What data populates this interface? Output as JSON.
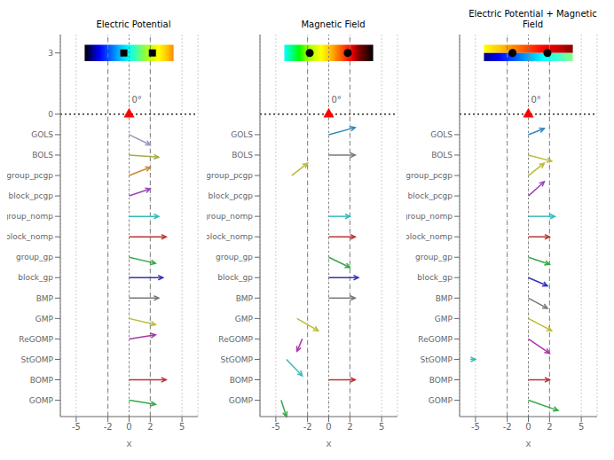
{
  "chart_data": [
    {
      "type": "arrow",
      "title": "Electric Potential",
      "xlabel": "x",
      "xlim": [
        -6.5,
        6.5
      ],
      "xticks": [
        -5,
        -2,
        0,
        2,
        5
      ],
      "ylim": [
        -14.8,
        3.9
      ],
      "yticks": [
        3,
        0,
        {
          "value": -1,
          "label": "GOLS"
        },
        {
          "value": -2,
          "label": "BOLS"
        },
        {
          "value": -3,
          "label": "group_pcgp"
        },
        {
          "value": -4,
          "label": "block_pcgp"
        },
        {
          "value": -5,
          "label": "group_nomp"
        },
        {
          "value": -6,
          "label": "block_nomp"
        },
        {
          "value": -7,
          "label": "group_gp"
        },
        {
          "value": -8,
          "label": "block_gp"
        },
        {
          "value": -9,
          "label": "BMP"
        },
        {
          "value": -10,
          "label": "GMP"
        },
        {
          "value": -11,
          "label": "ReGOMP"
        },
        {
          "value": -12,
          "label": "StGOMP"
        },
        {
          "value": -13,
          "label": "BOMP"
        },
        {
          "value": -14,
          "label": "GOMP"
        }
      ],
      "grid": "x",
      "arrows": [
        {
          "x": 0.0,
          "y": -1,
          "dx": 2.0,
          "dy": -0.5,
          "color": "#9999bb"
        },
        {
          "x": 0.0,
          "y": -2,
          "dx": 2.8,
          "dy": -0.1,
          "color": "#aaaa44"
        },
        {
          "x": 0.0,
          "y": -3,
          "dx": 2.0,
          "dy": 0.4,
          "color": "#cc8833"
        },
        {
          "x": 0.0,
          "y": -4,
          "dx": 2.0,
          "dy": 0.35,
          "color": "#9944bb"
        },
        {
          "x": 0.0,
          "y": -5,
          "dx": 2.8,
          "dy": 0.0,
          "color": "#33bbbb"
        },
        {
          "x": 0.0,
          "y": -6,
          "dx": 3.5,
          "dy": 0.0,
          "color": "#bb3333"
        },
        {
          "x": 0.0,
          "y": -7,
          "dx": 2.5,
          "dy": -0.3,
          "color": "#33aa44"
        },
        {
          "x": 0.0,
          "y": -8,
          "dx": 3.2,
          "dy": 0.0,
          "color": "#3333bb"
        },
        {
          "x": 0.0,
          "y": -9,
          "dx": 2.8,
          "dy": 0.0,
          "color": "#777777"
        },
        {
          "x": 0.0,
          "y": -10,
          "dx": 2.5,
          "dy": -0.3,
          "color": "#bbbb33"
        },
        {
          "x": 0.0,
          "y": -11,
          "dx": 2.5,
          "dy": 0.2,
          "color": "#aa33aa"
        },
        {
          "x": 0.0,
          "y": -12,
          "dx": 0.0,
          "dy": 0.0,
          "color": "#777777"
        },
        {
          "x": 0.0,
          "y": -13,
          "dx": 3.5,
          "dy": 0.0,
          "color": "#bb3333"
        },
        {
          "x": 0.0,
          "y": -14,
          "dx": 2.5,
          "dy": -0.2,
          "color": "#33aa44"
        }
      ],
      "colorbar": {
        "colors": [
          "#000000",
          "#000088",
          "#0000ff",
          "#0044ff",
          "#0088ff",
          "#00ccff",
          "#00ffee",
          "#44ffaa",
          "#88ff44",
          "#ccff00",
          "#ffff00",
          "#ffcc00",
          "#ff8800"
        ]
      },
      "colorbar_x": [
        -4.2,
        4.2
      ],
      "colorbar_y": [
        2.6,
        3.4
      ],
      "points": [
        {
          "x": -0.5,
          "y": 3.0,
          "marker": "square",
          "color": "#000000"
        },
        {
          "x": 2.2,
          "y": 3.0,
          "marker": "square",
          "color": "#000000"
        },
        {
          "x": 0.0,
          "y": 0.0,
          "marker": "triangle",
          "color": "#ff0000"
        }
      ],
      "annotations": [
        {
          "text": "0°",
          "x": 0.25,
          "y": 0.55
        }
      ],
      "vlines": [
        {
          "x": 0,
          "line_style": "dotted",
          "color": "#808080"
        },
        {
          "x": -2.0,
          "line_style": "dashed",
          "color": "#808080"
        },
        {
          "x": 2.0,
          "line_style": "dashed",
          "color": "#808080"
        }
      ],
      "hlines": [
        {
          "y": 0,
          "line_style": "dotted",
          "color": "#000000"
        }
      ]
    },
    {
      "type": "arrow",
      "title": "Magnetic Field",
      "xlabel": "x",
      "xlim": [
        -6.5,
        6.5
      ],
      "xticks": [
        -5,
        -2,
        0,
        2,
        5
      ],
      "ylim": [
        -14.8,
        3.9
      ],
      "yticks": [
        {
          "value": -1,
          "label": "GOLS"
        },
        {
          "value": -2,
          "label": "BOLS"
        },
        {
          "value": -3,
          "label": "group_pcgp"
        },
        {
          "value": -4,
          "label": "block_pcgp"
        },
        {
          "value": -5,
          "label": "group_nomp"
        },
        {
          "value": -6,
          "label": "block_nomp"
        },
        {
          "value": -7,
          "label": "group_gp"
        },
        {
          "value": -8,
          "label": "block_gp"
        },
        {
          "value": -9,
          "label": "BMP"
        },
        {
          "value": -10,
          "label": "GMP"
        },
        {
          "value": -11,
          "label": "ReGOMP"
        },
        {
          "value": -12,
          "label": "StGOMP"
        },
        {
          "value": -13,
          "label": "BOMP"
        },
        {
          "value": -14,
          "label": "GOMP"
        }
      ],
      "grid": "x",
      "arrows": [
        {
          "x": 0.0,
          "y": -1,
          "dx": 2.5,
          "dy": 0.35,
          "color": "#3388bb"
        },
        {
          "x": 0.0,
          "y": -2,
          "dx": 2.5,
          "dy": 0.0,
          "color": "#777777"
        },
        {
          "x": -3.5,
          "y": -3,
          "dx": 1.5,
          "dy": 0.6,
          "color": "#bbbb33"
        },
        {
          "x": 0.0,
          "y": -4,
          "dx": 0.0,
          "dy": 0.0,
          "color": "#9944bb"
        },
        {
          "x": 0.0,
          "y": -5,
          "dx": 2.0,
          "dy": 0.0,
          "color": "#33bbbb"
        },
        {
          "x": 0.0,
          "y": -6,
          "dx": 2.5,
          "dy": 0.0,
          "color": "#bb3333"
        },
        {
          "x": 0.0,
          "y": -7,
          "dx": 2.0,
          "dy": -0.5,
          "color": "#33aa44"
        },
        {
          "x": 0.0,
          "y": -8,
          "dx": 2.8,
          "dy": 0.0,
          "color": "#3333bb"
        },
        {
          "x": 0.0,
          "y": -9,
          "dx": 2.5,
          "dy": 0.0,
          "color": "#777777"
        },
        {
          "x": -3.0,
          "y": -10,
          "dx": 2.0,
          "dy": -0.6,
          "color": "#bbbb33"
        },
        {
          "x": -2.5,
          "y": -11,
          "dx": -0.5,
          "dy": -0.6,
          "color": "#aa33aa"
        },
        {
          "x": -4.0,
          "y": -12,
          "dx": 1.5,
          "dy": -0.8,
          "color": "#33bbbb"
        },
        {
          "x": 0.0,
          "y": -13,
          "dx": 2.5,
          "dy": 0.0,
          "color": "#bb3333"
        },
        {
          "x": -4.5,
          "y": -14,
          "dx": 0.5,
          "dy": -0.8,
          "color": "#33aa44"
        }
      ],
      "colorbar": {
        "colors": [
          "#00ffff",
          "#00ff88",
          "#00ff00",
          "#88ff00",
          "#ccff00",
          "#ffff00",
          "#ffcc00",
          "#ff8800",
          "#ff4400",
          "#ff0000",
          "#880000",
          "#440000",
          "#000000"
        ]
      },
      "colorbar_x": [
        -4.2,
        4.2
      ],
      "colorbar_y": [
        2.6,
        3.4
      ],
      "points": [
        {
          "x": -1.8,
          "y": 3.0,
          "marker": "circle",
          "color": "#000000"
        },
        {
          "x": 1.8,
          "y": 3.0,
          "marker": "circle",
          "color": "#000000"
        },
        {
          "x": 0.0,
          "y": 0.0,
          "marker": "triangle",
          "color": "#ff0000"
        }
      ],
      "annotations": [
        {
          "text": "0°",
          "x": 0.25,
          "y": 0.55
        }
      ],
      "vlines": [
        {
          "x": 0,
          "line_style": "dotted",
          "color": "#808080"
        },
        {
          "x": -2.0,
          "line_style": "dashed",
          "color": "#808080"
        },
        {
          "x": 2.0,
          "line_style": "dashed",
          "color": "#808080"
        }
      ],
      "hlines": [
        {
          "y": 0,
          "line_style": "dotted",
          "color": "#000000"
        }
      ]
    },
    {
      "type": "arrow",
      "title": "Electric Potential + Magnetic Field",
      "xlabel": "x",
      "xlim": [
        -6.5,
        6.5
      ],
      "xticks": [
        -5,
        -2,
        0,
        2,
        5
      ],
      "ylim": [
        -14.8,
        3.9
      ],
      "yticks": [
        {
          "value": -1,
          "label": "GOLS"
        },
        {
          "value": -2,
          "label": "BOLS"
        },
        {
          "value": -3,
          "label": "group_pcgp"
        },
        {
          "value": -4,
          "label": "block_pcgp"
        },
        {
          "value": -5,
          "label": "group_nomp"
        },
        {
          "value": -6,
          "label": "block_nomp"
        },
        {
          "value": -7,
          "label": "group_gp"
        },
        {
          "value": -8,
          "label": "block_gp"
        },
        {
          "value": -9,
          "label": "BMP"
        },
        {
          "value": -10,
          "label": "GMP"
        },
        {
          "value": -11,
          "label": "ReGOMP"
        },
        {
          "value": -12,
          "label": "StGOMP"
        },
        {
          "value": -13,
          "label": "BOMP"
        },
        {
          "value": -14,
          "label": "GOMP"
        }
      ],
      "grid": "x",
      "arrows": [
        {
          "x": 0.0,
          "y": -1,
          "dx": 1.5,
          "dy": 0.3,
          "color": "#3388bb"
        },
        {
          "x": 0.0,
          "y": -2,
          "dx": 2.2,
          "dy": -0.3,
          "color": "#bbbb33"
        },
        {
          "x": 0.0,
          "y": -3,
          "dx": 1.5,
          "dy": 0.6,
          "color": "#bbbb33"
        },
        {
          "x": 0.0,
          "y": -4,
          "dx": 1.5,
          "dy": 0.7,
          "color": "#9944bb"
        },
        {
          "x": 0.0,
          "y": -5,
          "dx": 2.5,
          "dy": 0.0,
          "color": "#33bbbb"
        },
        {
          "x": 0.0,
          "y": -6,
          "dx": 2.0,
          "dy": 0.0,
          "color": "#bb3333"
        },
        {
          "x": 0.0,
          "y": -7,
          "dx": 2.0,
          "dy": -0.35,
          "color": "#33aa44"
        },
        {
          "x": 0.0,
          "y": -8,
          "dx": 1.8,
          "dy": -0.4,
          "color": "#3333bb"
        },
        {
          "x": 0.0,
          "y": -9,
          "dx": 1.8,
          "dy": -0.5,
          "color": "#777777"
        },
        {
          "x": 0.0,
          "y": -10,
          "dx": 2.2,
          "dy": -0.6,
          "color": "#bbbb33"
        },
        {
          "x": 0.0,
          "y": -11,
          "dx": 2.0,
          "dy": -0.7,
          "color": "#aa33aa"
        },
        {
          "x": -5.5,
          "y": -12,
          "dx": 0.5,
          "dy": 0.0,
          "color": "#33bbbb"
        },
        {
          "x": 0.0,
          "y": -13,
          "dx": 2.0,
          "dy": 0.0,
          "color": "#bb3333"
        },
        {
          "x": 0.0,
          "y": -14,
          "dx": 2.8,
          "dy": -0.5,
          "color": "#33aa44"
        }
      ],
      "colorbar": {
        "colors_top": [
          "#ffff00",
          "#ffcc00",
          "#ff8800",
          "#ff4400",
          "#ff0000",
          "#cc0000",
          "#880000"
        ],
        "colors_bottom": [
          "#000088",
          "#0000ff",
          "#0055ff",
          "#00aaff",
          "#00ffff",
          "#44ffcc",
          "#88ff88"
        ]
      },
      "colorbar_x": [
        -4.2,
        4.2
      ],
      "colorbar_y": [
        2.6,
        3.4
      ],
      "points": [
        {
          "x": -1.5,
          "y": 3.0,
          "marker": "circle",
          "color": "#000000"
        },
        {
          "x": 1.8,
          "y": 3.0,
          "marker": "circle",
          "color": "#000000"
        },
        {
          "x": 0.0,
          "y": 0.0,
          "marker": "triangle",
          "color": "#ff0000"
        }
      ],
      "annotations": [
        {
          "text": "0°",
          "x": 0.25,
          "y": 0.55
        }
      ],
      "vlines": [
        {
          "x": 0,
          "line_style": "dotted",
          "color": "#808080"
        },
        {
          "x": -2.0,
          "line_style": "dashed",
          "color": "#808080"
        },
        {
          "x": 2.0,
          "line_style": "dashed",
          "color": "#808080"
        }
      ],
      "hlines": [
        {
          "y": 0,
          "line_style": "dotted",
          "color": "#000000"
        }
      ]
    }
  ]
}
